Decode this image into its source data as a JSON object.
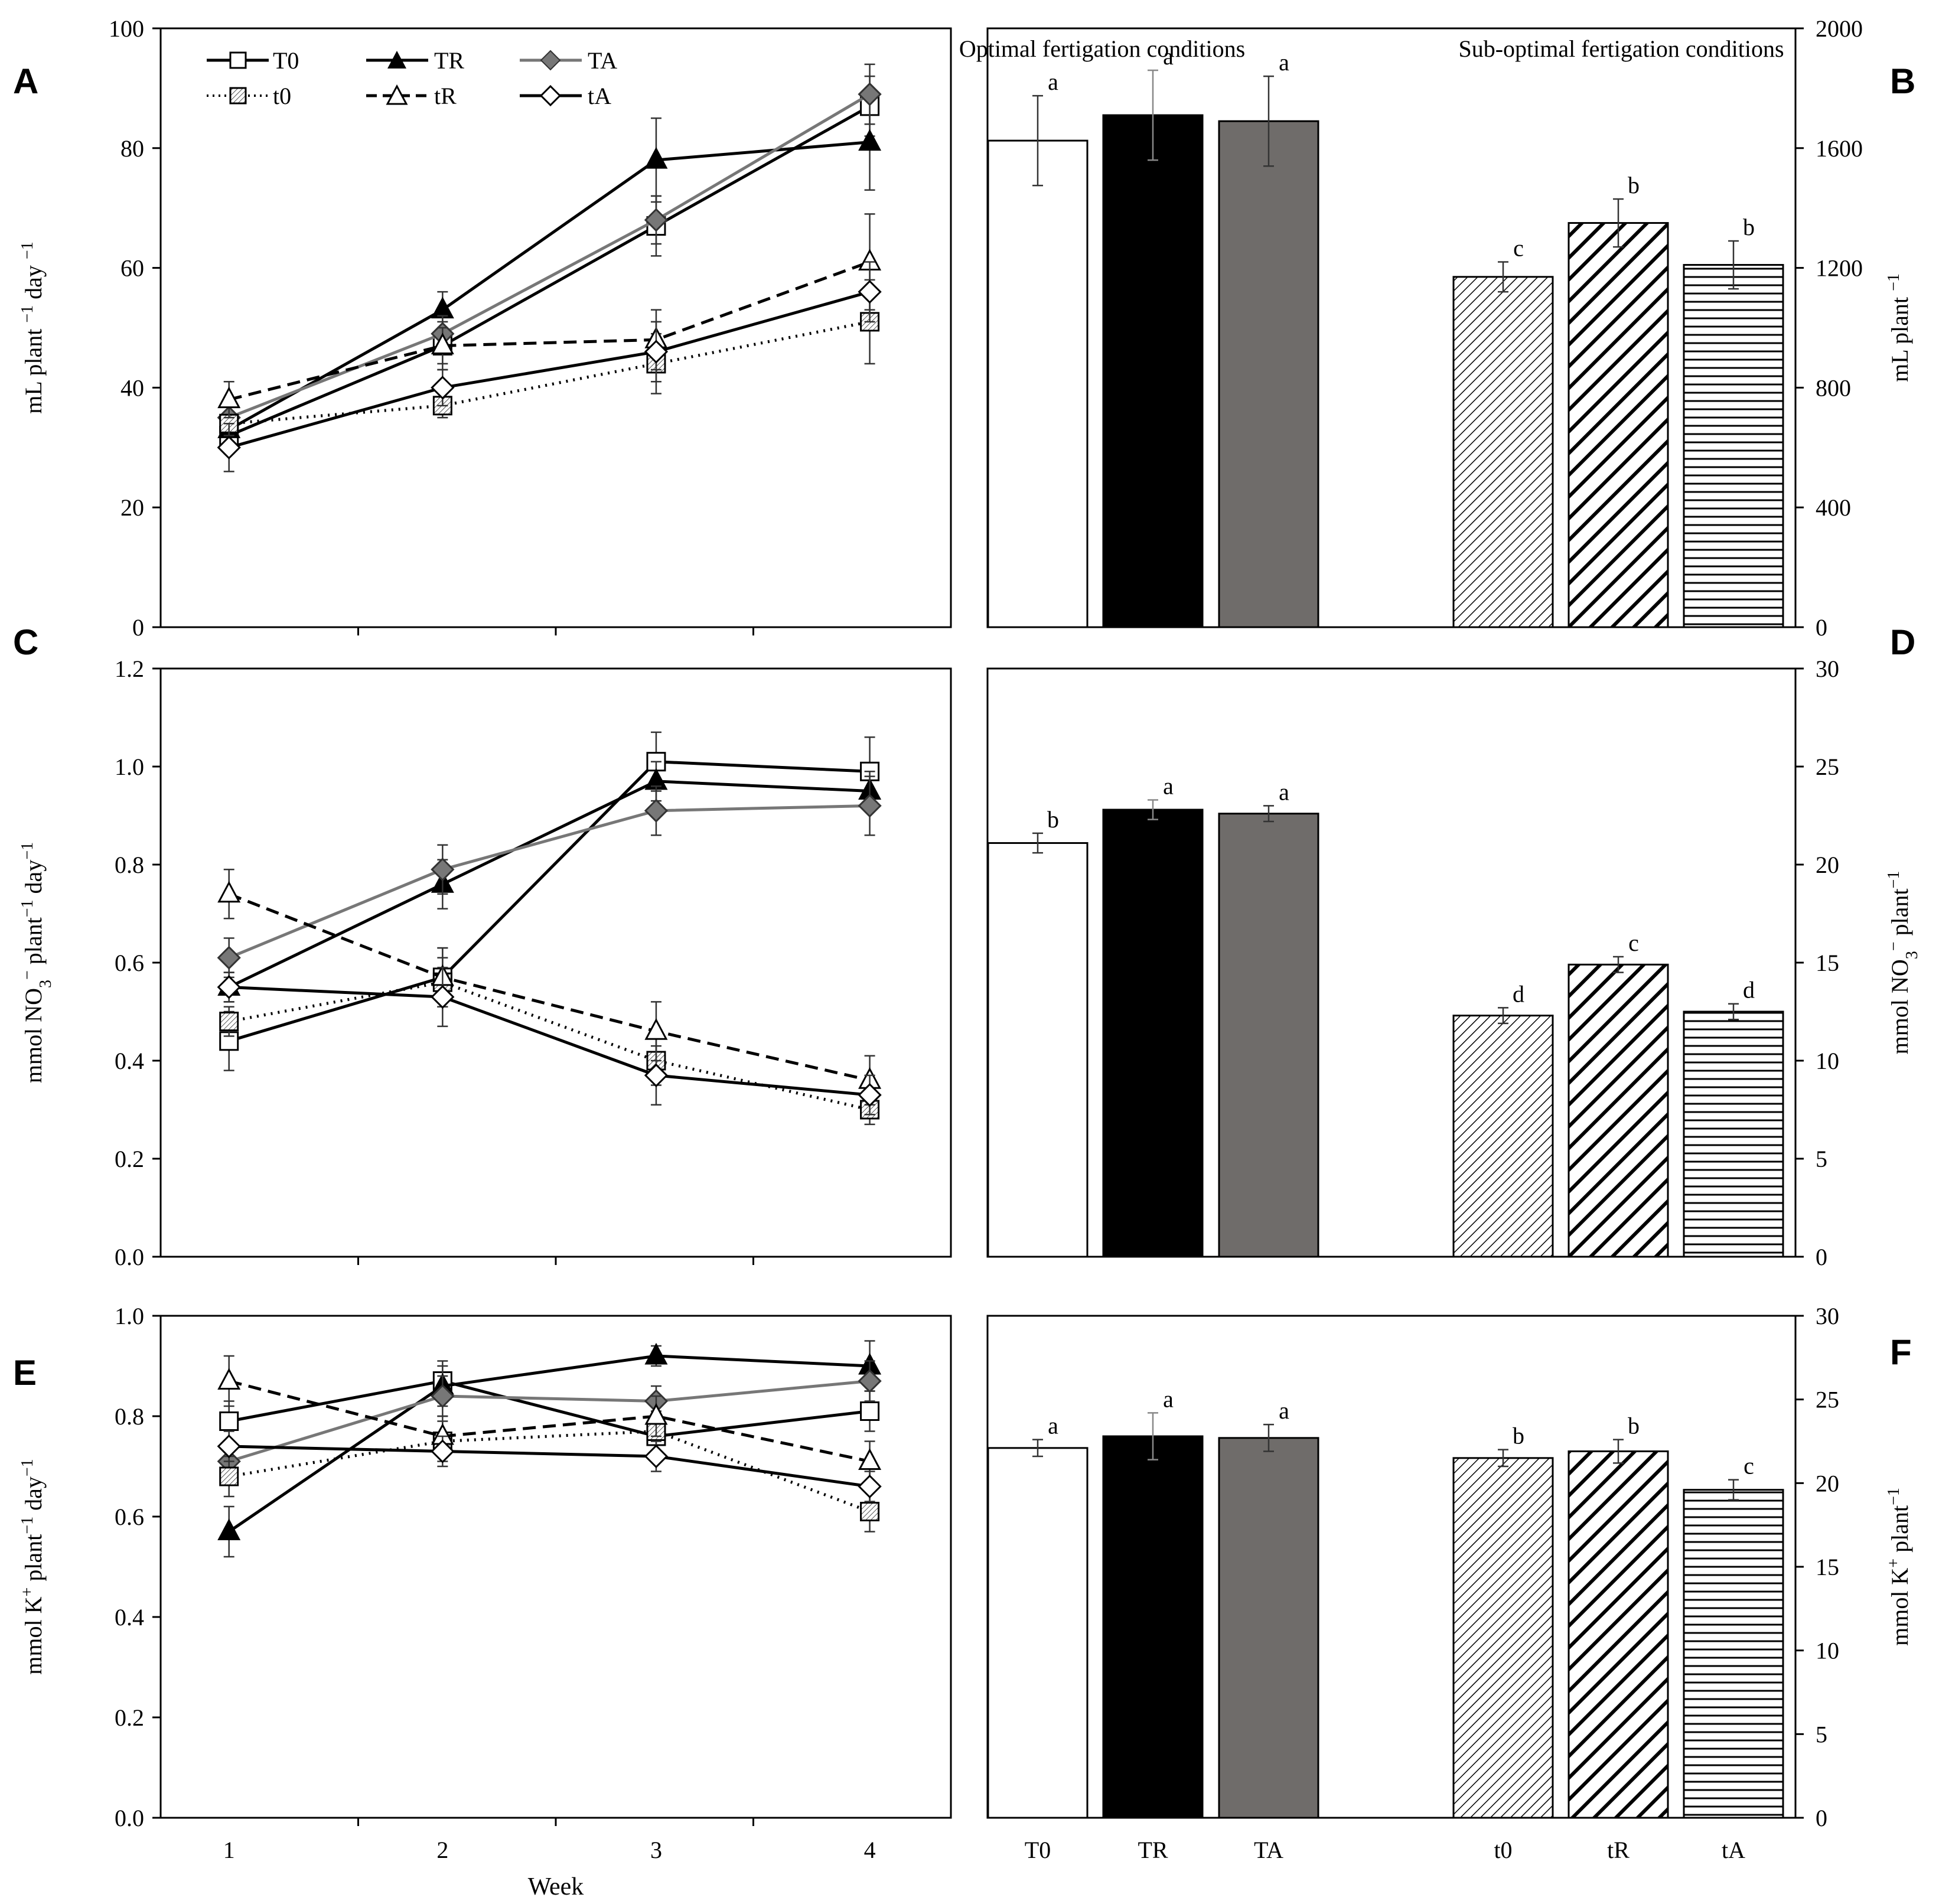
{
  "figure": {
    "x_label": "Week",
    "legend": [
      "T0",
      "TR",
      "TA",
      "t0",
      "tR",
      "tA"
    ],
    "group_labels": {
      "optimal": "Optimal fertigation conditions",
      "sub_optimal": "Sub-optimal  fertigation conditions"
    },
    "colors": {
      "black": "#000000",
      "gray": "#777777",
      "darkgray": "#6f6c6a",
      "diamond_fill": "#777777"
    }
  },
  "chart_data": [
    {
      "panel": "A",
      "type": "line",
      "ylabel": "mL plant −1 day −1",
      "ylim": [
        0,
        100
      ],
      "yticks": [
        0,
        20,
        40,
        60,
        80,
        100
      ],
      "x": [
        1,
        2,
        3,
        4
      ],
      "xticks": [
        1,
        2,
        3,
        4
      ],
      "xlabel": "",
      "series": [
        {
          "name": "T0",
          "values": [
            32,
            47,
            67,
            87
          ],
          "err": [
            3,
            4,
            5,
            5
          ]
        },
        {
          "name": "TR",
          "values": [
            33,
            53,
            78,
            81
          ],
          "err": [
            3,
            3,
            7,
            8
          ]
        },
        {
          "name": "TA",
          "values": [
            35,
            49,
            68,
            89
          ],
          "err": [
            3,
            3,
            4,
            5
          ]
        },
        {
          "name": "t0",
          "values": [
            34,
            37,
            44,
            51
          ],
          "err": [
            3,
            2,
            5,
            7
          ]
        },
        {
          "name": "tR",
          "values": [
            38,
            47,
            48,
            61
          ],
          "err": [
            3,
            3,
            5,
            8
          ]
        },
        {
          "name": "tA",
          "values": [
            30,
            40,
            46,
            56
          ],
          "err": [
            4,
            3,
            5,
            5
          ]
        }
      ]
    },
    {
      "panel": "B",
      "type": "bar",
      "ylabel": "mL plant −1",
      "ylim": [
        0,
        2000
      ],
      "yticks": [
        0,
        400,
        800,
        1200,
        1600,
        2000
      ],
      "categories": [
        "T0",
        "TR",
        "TA",
        "t0",
        "tR",
        "tA"
      ],
      "values": [
        1625,
        1710,
        1690,
        1170,
        1350,
        1210
      ],
      "err": [
        150,
        150,
        150,
        50,
        80,
        80
      ],
      "letters": [
        "a",
        "a",
        "a",
        "c",
        "b",
        "b"
      ],
      "show_xticks": false
    },
    {
      "panel": "C",
      "type": "line",
      "ylabel": "mmol NO3− plant−1 day−1",
      "ylim": [
        0,
        1.2
      ],
      "yticks": [
        "0.0",
        "0.2",
        "0.4",
        "0.6",
        "0.8",
        "1.0",
        "1.2"
      ],
      "x": [
        1,
        2,
        3,
        4
      ],
      "xticks": [
        1,
        2,
        3,
        4
      ],
      "xlabel": "",
      "series": [
        {
          "name": "T0",
          "values": [
            0.44,
            0.57,
            1.01,
            0.99
          ],
          "err": [
            0.06,
            0.06,
            0.06,
            0.07
          ]
        },
        {
          "name": "TR",
          "values": [
            0.55,
            0.76,
            0.97,
            0.95
          ],
          "err": [
            0.03,
            0.05,
            0.04,
            0.04
          ]
        },
        {
          "name": "TA",
          "values": [
            0.61,
            0.79,
            0.91,
            0.92
          ],
          "err": [
            0.04,
            0.05,
            0.05,
            0.06
          ]
        },
        {
          "name": "t0",
          "values": [
            0.48,
            0.56,
            0.4,
            0.3
          ],
          "err": [
            0.03,
            0.05,
            0.05,
            0.03
          ]
        },
        {
          "name": "tR",
          "values": [
            0.74,
            0.57,
            0.46,
            0.36
          ],
          "err": [
            0.05,
            0.06,
            0.06,
            0.05
          ]
        },
        {
          "name": "tA",
          "values": [
            0.55,
            0.53,
            0.37,
            0.33
          ],
          "err": [
            0.03,
            0.06,
            0.06,
            0.04
          ]
        }
      ]
    },
    {
      "panel": "D",
      "type": "bar",
      "ylabel": "mmol NO3− plant−1",
      "ylim": [
        0,
        30
      ],
      "yticks": [
        0,
        5,
        10,
        15,
        20,
        25,
        30
      ],
      "categories": [
        "T0",
        "TR",
        "TA",
        "t0",
        "tR",
        "tA"
      ],
      "values": [
        21.1,
        22.8,
        22.6,
        12.3,
        14.9,
        12.5
      ],
      "err": [
        0.5,
        0.5,
        0.4,
        0.4,
        0.4,
        0.4
      ],
      "letters": [
        "b",
        "a",
        "a",
        "d",
        "c",
        "d"
      ],
      "show_xticks": false
    },
    {
      "panel": "E",
      "type": "line",
      "ylabel": "mmol K+ plant−1 day−1",
      "ylim": [
        0,
        1.0
      ],
      "yticks": [
        "0.0",
        "0.2",
        "0.4",
        "0.6",
        "0.8",
        "1.0"
      ],
      "x": [
        1,
        2,
        3,
        4
      ],
      "xticks": [
        1,
        2,
        3,
        4
      ],
      "xlabel": "Week",
      "series": [
        {
          "name": "T0",
          "values": [
            0.79,
            0.87,
            0.76,
            0.81
          ],
          "err": [
            0.04,
            0.04,
            0.04,
            0.04
          ]
        },
        {
          "name": "TR",
          "values": [
            0.57,
            0.86,
            0.92,
            0.9
          ],
          "err": [
            0.05,
            0.04,
            0.02,
            0.05
          ]
        },
        {
          "name": "TA",
          "values": [
            0.71,
            0.84,
            0.83,
            0.87
          ],
          "err": [
            0.04,
            0.04,
            0.03,
            0.04
          ]
        },
        {
          "name": "t0",
          "values": [
            0.68,
            0.75,
            0.77,
            0.61
          ],
          "err": [
            0.04,
            0.04,
            0.04,
            0.04
          ]
        },
        {
          "name": "tR",
          "values": [
            0.87,
            0.76,
            0.8,
            0.71
          ],
          "err": [
            0.05,
            0.04,
            0.04,
            0.04
          ]
        },
        {
          "name": "tA",
          "values": [
            0.74,
            0.73,
            0.72,
            0.66
          ],
          "err": [
            0.03,
            0.03,
            0.03,
            0.03
          ]
        }
      ]
    },
    {
      "panel": "F",
      "type": "bar",
      "ylabel": "mmol K+ plant−1",
      "ylim": [
        0,
        30
      ],
      "yticks": [
        0,
        5,
        10,
        15,
        20,
        25,
        30
      ],
      "categories": [
        "T0",
        "TR",
        "TA",
        "t0",
        "tR",
        "tA"
      ],
      "values": [
        22.1,
        22.8,
        22.7,
        21.5,
        21.9,
        19.6
      ],
      "err": [
        0.5,
        1.4,
        0.8,
        0.5,
        0.7,
        0.6
      ],
      "letters": [
        "a",
        "a",
        "a",
        "b",
        "b",
        "c"
      ],
      "show_xticks": true
    }
  ]
}
